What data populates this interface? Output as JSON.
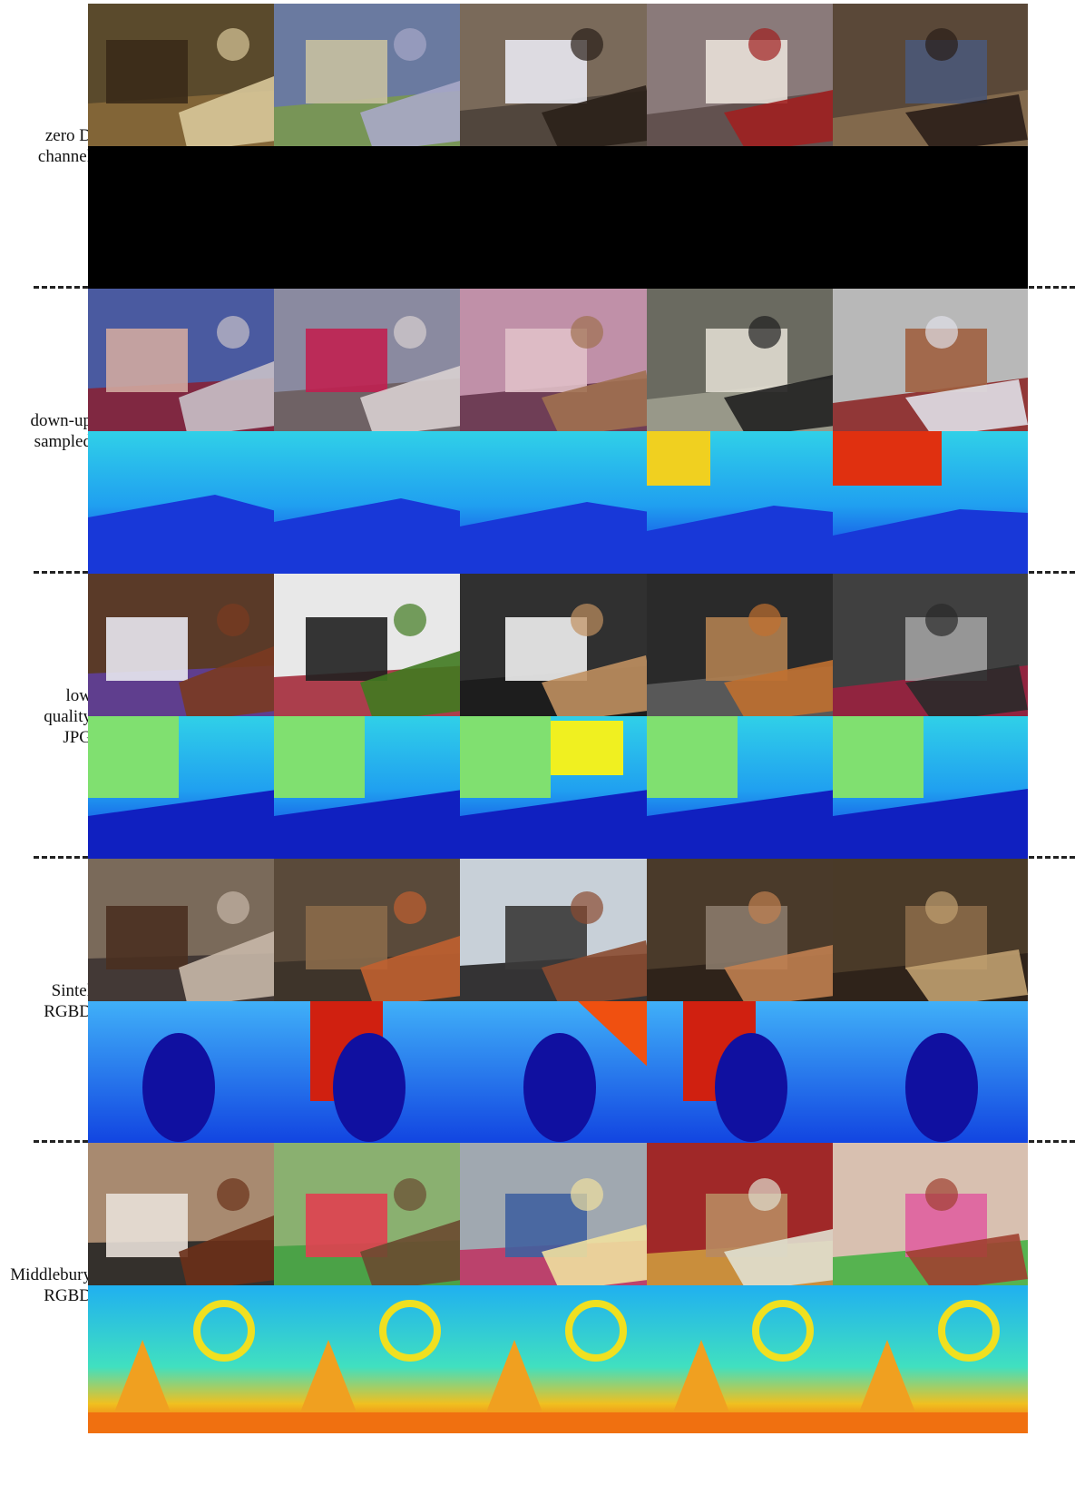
{
  "sections": [
    {
      "id": "zero-d",
      "label_lines": [
        "zero D",
        "channel"
      ],
      "depth_style": "black",
      "rgb": [
        {
          "bg": "#5a4a2c",
          "a": "#3a2a18",
          "b": "#d8c89a",
          "c": "#8a6a3a"
        },
        {
          "bg": "#6a7aa0",
          "a": "#c8c0a0",
          "b": "#a8a8c8",
          "c": "#7a9a4a"
        },
        {
          "bg": "#7a6a5a",
          "a": "#e8e8f0",
          "b": "#2a2018",
          "c": "#4a4038"
        },
        {
          "bg": "#8a7a7a",
          "a": "#e8e0d8",
          "b": "#a02020",
          "c": "#5a4a48"
        },
        {
          "bg": "#5a4838",
          "a": "#4a5878",
          "b": "#2a1e18",
          "c": "#8a7050"
        }
      ]
    },
    {
      "id": "down-up",
      "label_lines": [
        "down-up",
        "sampled"
      ],
      "depth_style": "bluegreen",
      "rgb": [
        {
          "bg": "#4a5aa0",
          "a": "#d0a8a0",
          "b": "#c8c0c8",
          "c": "#8a2030"
        },
        {
          "bg": "#8a8aa0",
          "a": "#c02050",
          "b": "#d8d0d0",
          "c": "#6a5a5a"
        },
        {
          "bg": "#c090a8",
          "a": "#e0c0c8",
          "b": "#a07050",
          "c": "#603048"
        },
        {
          "bg": "#6a6a60",
          "a": "#e0dcd0",
          "b": "#202020",
          "c": "#a0a090"
        },
        {
          "bg": "#b8b8b8",
          "a": "#a06040",
          "b": "#e0e0e8",
          "c": "#8a2020"
        }
      ]
    },
    {
      "id": "low-jpg",
      "label_lines": [
        "low",
        "quality",
        "JPG"
      ],
      "depth_style": "jpg",
      "rgb": [
        {
          "bg": "#5a3a28",
          "a": "#e8e8f0",
          "b": "#7a3a20",
          "c": "#6040a0"
        },
        {
          "bg": "#e8e8e8",
          "a": "#202020",
          "b": "#407a20",
          "c": "#a02030"
        },
        {
          "bg": "#303030",
          "a": "#f0f0f0",
          "b": "#c09060",
          "c": "#1a1a1a"
        },
        {
          "bg": "#2a2a2a",
          "a": "#b08050",
          "b": "#c07030",
          "c": "#606060"
        },
        {
          "bg": "#404040",
          "a": "#a0a0a0",
          "b": "#2a2a2a",
          "c": "#a02040"
        }
      ]
    },
    {
      "id": "sintel",
      "label_lines": [
        "Sintel",
        "RGBD"
      ],
      "depth_style": "sintel",
      "rgb": [
        {
          "bg": "#7a6a5a",
          "a": "#4a3020",
          "b": "#c8b8a8",
          "c": "#3a3030"
        },
        {
          "bg": "#5a4a3a",
          "a": "#8a6a4a",
          "b": "#c06030",
          "c": "#3a3028"
        },
        {
          "bg": "#c8d0d8",
          "a": "#3a3838",
          "b": "#8a4a30",
          "c": "#1a1818"
        },
        {
          "bg": "#4a3a2a",
          "a": "#8a7a6a",
          "b": "#c08050",
          "c": "#2a2018"
        },
        {
          "bg": "#4a3a28",
          "a": "#8a6a48",
          "b": "#c0a070",
          "c": "#2a2018"
        }
      ]
    },
    {
      "id": "middlebury",
      "label_lines": [
        "Middlebury",
        "RGBD"
      ],
      "depth_style": "middlebury",
      "rgb": [
        {
          "bg": "#a88a70",
          "a": "#e8e0d8",
          "b": "#6a3018",
          "c": "#202020"
        },
        {
          "bg": "#8ab070",
          "a": "#e04050",
          "b": "#6a4a30",
          "c": "#40a040"
        },
        {
          "bg": "#a0a8b0",
          "a": "#4060a0",
          "b": "#f0e0a0",
          "c": "#c03060"
        },
        {
          "bg": "#a02828",
          "a": "#b88a60",
          "b": "#e0e0d0",
          "c": "#d0a040"
        },
        {
          "bg": "#d8c0b0",
          "a": "#e060a0",
          "b": "#a04030",
          "c": "#40b040"
        }
      ]
    }
  ]
}
